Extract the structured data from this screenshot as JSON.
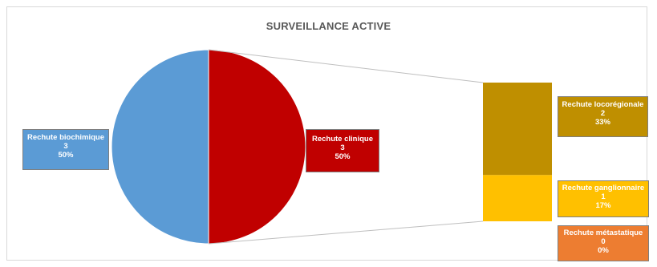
{
  "chart_data": {
    "type": "pie",
    "subtype": "bar-of-pie",
    "title": "SURVEILLANCE ACTIVE",
    "slices": [
      {
        "name": "Rechute biochimique",
        "value": 3,
        "percent": "50%",
        "color": "#5b9bd5"
      },
      {
        "name": "Rechute clinique",
        "value": 3,
        "percent": "50%",
        "color": "#c00000"
      }
    ],
    "breakdown_of": "Rechute clinique",
    "bar_segments": [
      {
        "name": "Rechute locorégionale",
        "value": 2,
        "percent": "33%",
        "color": "#bf8f00"
      },
      {
        "name": "Rechute ganglionnaire",
        "value": 1,
        "percent": "17%",
        "color": "#ffc000"
      },
      {
        "name": "Rechute métastatique",
        "value": 0,
        "percent": "0%",
        "color": "#ed7d31"
      }
    ],
    "legend": "none",
    "grid": false
  }
}
